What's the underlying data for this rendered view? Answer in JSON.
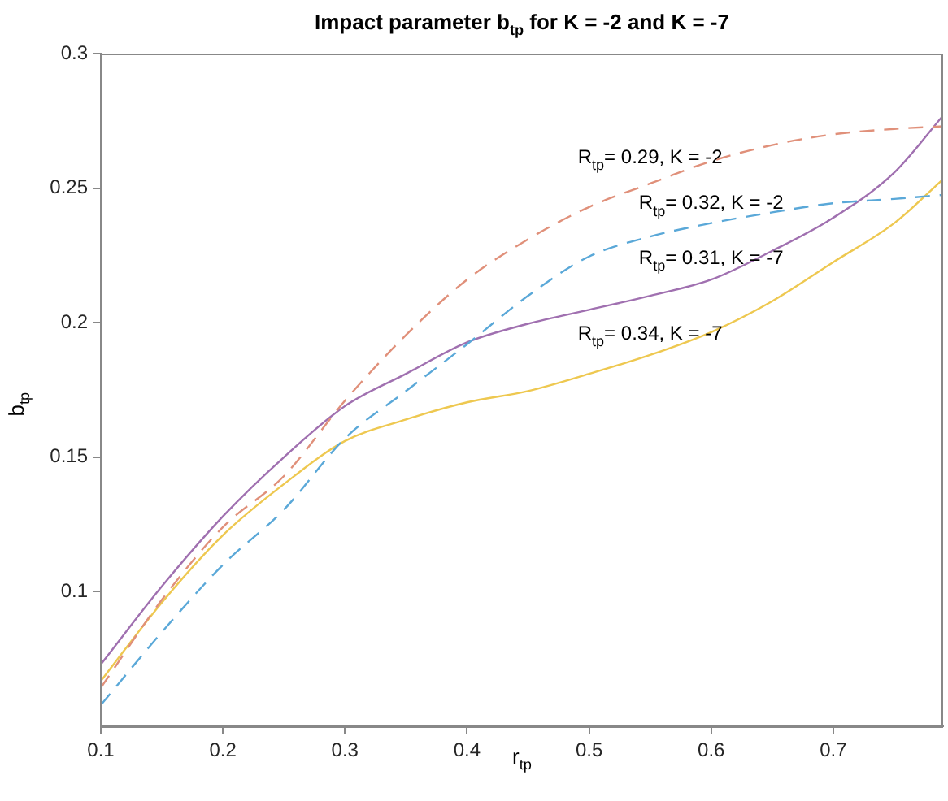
{
  "chart_data": {
    "type": "line",
    "title": "Impact parameter b$_{tp}$ for K = -2 and K = -7",
    "xlabel": "r$_{tp}$",
    "ylabel": "b$_{tp}$",
    "x": [
      0.1,
      0.15,
      0.2,
      0.25,
      0.3,
      0.35,
      0.4,
      0.45,
      0.5,
      0.55,
      0.6,
      0.65,
      0.7,
      0.75,
      0.79
    ],
    "series": [
      {
        "name": "R$_{tp}$= 0.29, K = -2",
        "color": "#e0907a",
        "line_style": "dashed",
        "values": [
          0.0643,
          0.097,
          0.124,
          0.143,
          0.171,
          0.1954,
          0.216,
          0.231,
          0.243,
          0.2517,
          0.26,
          0.266,
          0.27,
          0.272,
          0.273
        ]
      },
      {
        "name": "R$_{tp}$= 0.32, K = -2",
        "color": "#5aa8d8",
        "line_style": "dashed",
        "values": [
          0.0579,
          0.085,
          0.11,
          0.1305,
          0.157,
          0.1746,
          0.192,
          0.21,
          0.2246,
          0.232,
          0.237,
          0.241,
          0.2444,
          0.246,
          0.2475
        ]
      },
      {
        "name": "R$_{tp}$= 0.31, K = -7",
        "color": "#a070b0",
        "line_style": "solid",
        "values": [
          0.073,
          0.102,
          0.128,
          0.15,
          0.169,
          0.181,
          0.1927,
          0.1996,
          0.2048,
          0.21,
          0.216,
          0.2267,
          0.239,
          0.2558,
          0.277
        ]
      },
      {
        "name": "R$_{tp}$= 0.34, K = -7",
        "color": "#eec850",
        "line_style": "solid",
        "values": [
          0.0668,
          0.096,
          0.121,
          0.14,
          0.156,
          0.164,
          0.1704,
          0.1746,
          0.181,
          0.188,
          0.1965,
          0.208,
          0.2225,
          0.237,
          0.2533
        ]
      }
    ],
    "xlim": [
      0.1,
      0.79
    ],
    "xticks": [
      0.1,
      0.2,
      0.3,
      0.4,
      0.5,
      0.6,
      0.7
    ],
    "ylim": [
      0.05,
      0.3
    ],
    "yticks": [
      0.1,
      0.15,
      0.2,
      0.25,
      0.3
    ],
    "grid": false,
    "legend": false,
    "marker": "none"
  }
}
